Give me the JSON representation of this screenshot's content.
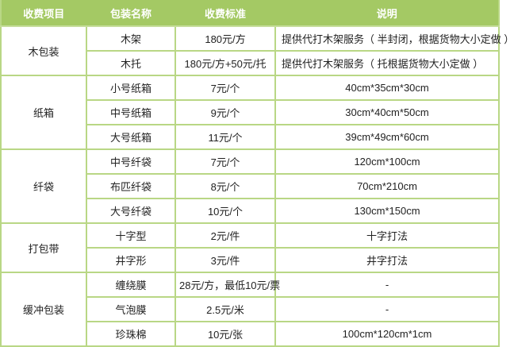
{
  "table": {
    "headers": [
      "收费项目",
      "包装名称",
      "收费标准",
      "说明"
    ],
    "groups": [
      {
        "item": "木包装",
        "rows": [
          {
            "name": "木架",
            "price": "180元/方",
            "desc": "提供代打木架服务（ 半封闭，根据货物大小定做 ）"
          },
          {
            "name": "木托",
            "price": "180元/方+50元/托",
            "desc": "提供代打木架服务（ 托根据货物大小定做 ）"
          }
        ]
      },
      {
        "item": "纸箱",
        "rows": [
          {
            "name": "小号纸箱",
            "price": "7元/个",
            "desc": "40cm*35cm*30cm"
          },
          {
            "name": "中号纸箱",
            "price": "9元/个",
            "desc": "30cm*40cm*50cm"
          },
          {
            "name": "大号纸箱",
            "price": "11元/个",
            "desc": "39cm*49cm*60cm"
          }
        ]
      },
      {
        "item": "纤袋",
        "rows": [
          {
            "name": "中号纤袋",
            "price": "7元/个",
            "desc": "120cm*100cm"
          },
          {
            "name": "布匹纤袋",
            "price": "8元/个",
            "desc": "70cm*210cm"
          },
          {
            "name": "大号纤袋",
            "price": "10元/个",
            "desc": "130cm*150cm"
          }
        ]
      },
      {
        "item": "打包带",
        "rows": [
          {
            "name": "十字型",
            "price": "2元/件",
            "desc": "十字打法"
          },
          {
            "name": "井字形",
            "price": "3元/件",
            "desc": "井字打法"
          }
        ]
      },
      {
        "item": "缓冲包装",
        "rows": [
          {
            "name": "缠绕膜",
            "price": "28元/方，最低10元/票",
            "desc": "-"
          },
          {
            "name": "气泡膜",
            "price": "2.5元/米",
            "desc": "-"
          },
          {
            "name": "珍珠棉",
            "price": "10元/张",
            "desc": "100cm*120cm*1cm"
          }
        ]
      }
    ]
  },
  "colors": {
    "header_bg": "#a4c964",
    "header_text": "#ffffff",
    "border": "#b9d785",
    "body_text": "#222222"
  }
}
